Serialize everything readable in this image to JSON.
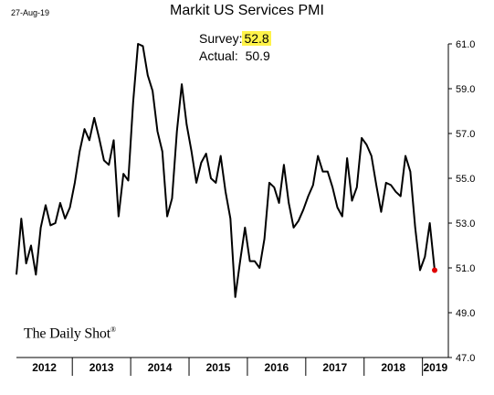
{
  "header": {
    "date": "27-Aug-19",
    "title": "Markit US Services PMI"
  },
  "annotation": {
    "survey_label": "Survey:",
    "survey_value": "52.8",
    "actual_label": "Actual:",
    "actual_value": "50.9"
  },
  "brand": {
    "text": "The Daily Shot",
    "mark": "®"
  },
  "colors": {
    "line": "#000000",
    "highlight": "#fff34a",
    "last_point": "#e00000"
  },
  "chart_data": {
    "type": "line",
    "title": "Markit US Services PMI",
    "xlabel": "",
    "ylabel": "",
    "ylim": [
      47,
      61
    ],
    "y_ticks": [
      "61.0",
      "59.0",
      "57.0",
      "55.0",
      "53.0",
      "51.0",
      "49.0",
      "47.0"
    ],
    "x_tick_labels": [
      "2012",
      "2013",
      "2014",
      "2015",
      "2016",
      "2017",
      "2018",
      "2019"
    ],
    "grid": false,
    "x_start": "2012-01",
    "series": [
      {
        "values": [
          50.7,
          53.2,
          51.2,
          52.0,
          50.7,
          52.8,
          53.8,
          52.9,
          53.0,
          53.9,
          53.2,
          53.7,
          54.8,
          56.2,
          57.2,
          56.7,
          57.7,
          56.8,
          55.8,
          55.6,
          56.7,
          53.3,
          55.2,
          54.9,
          58.4,
          61.0,
          60.9,
          59.6,
          58.9,
          57.1,
          56.2,
          53.3,
          54.1,
          57.1,
          59.2,
          57.4,
          56.2,
          54.8,
          55.7,
          56.1,
          55.0,
          54.8,
          56.0,
          54.4,
          53.2,
          49.7,
          51.3,
          52.8,
          51.3,
          51.3,
          51.0,
          52.3,
          54.8,
          54.6,
          53.9,
          55.6,
          53.9,
          52.8,
          53.1,
          53.6,
          54.2,
          54.7,
          56.0,
          55.3,
          55.3,
          54.6,
          53.7,
          53.3,
          55.9,
          54.0,
          54.6,
          56.8,
          56.5,
          56.0,
          54.7,
          53.5,
          54.8,
          54.7,
          54.4,
          54.2,
          56.0,
          55.3,
          52.8,
          50.9,
          51.5,
          53.0,
          50.9
        ]
      }
    ]
  }
}
